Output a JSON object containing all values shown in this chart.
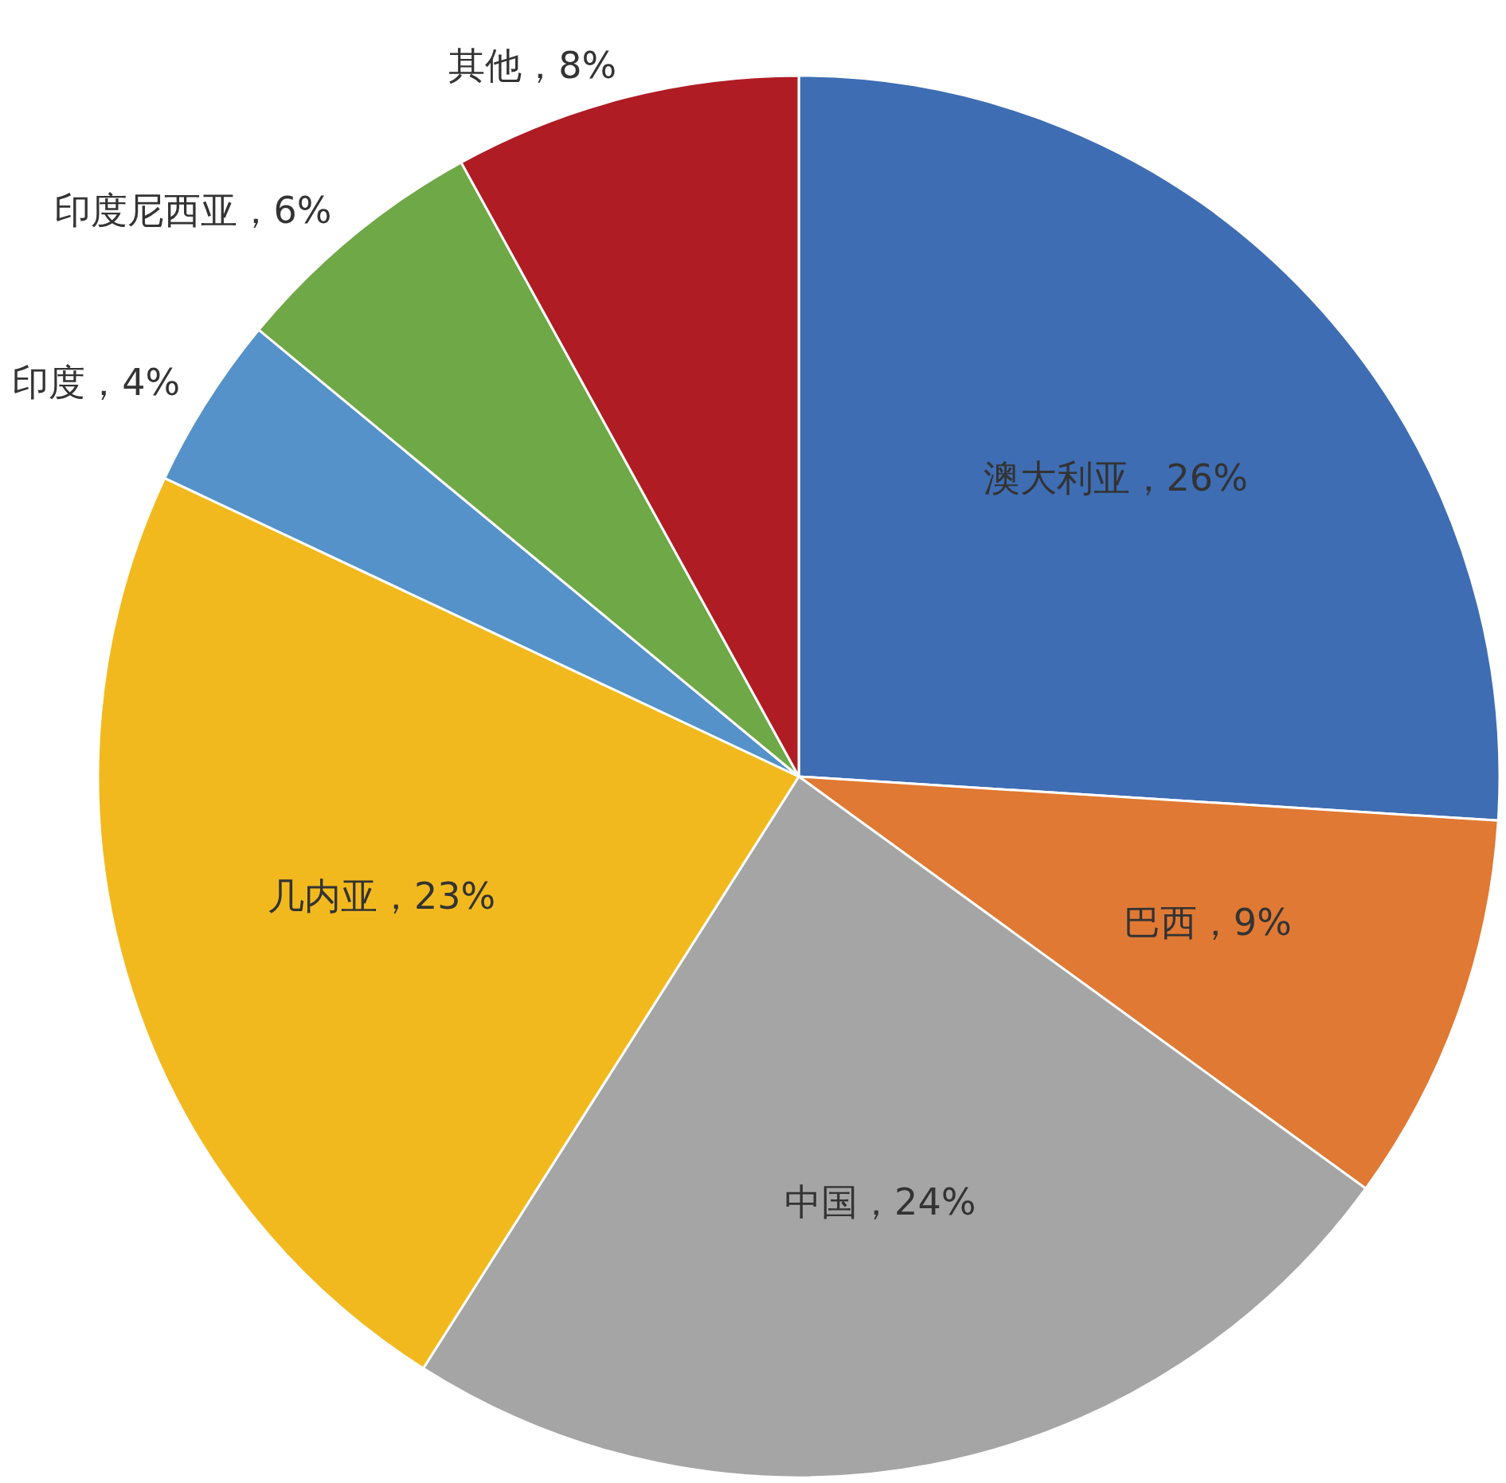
{
  "chart_data": {
    "type": "pie",
    "categories": [
      "澳大利亚",
      "巴西",
      "中国",
      "几内亚",
      "印度",
      "印度尼西亚",
      "其他"
    ],
    "values": [
      26,
      9,
      24,
      23,
      4,
      6,
      8
    ],
    "colors": [
      "#3e6db3",
      "#e07934",
      "#a5a5a5",
      "#f2b91f",
      "#5592c9",
      "#6fa846",
      "#b01c24"
    ],
    "value_labels": [
      "26%",
      "9%",
      "24%",
      "23%",
      "4%",
      "6%",
      "8%"
    ]
  }
}
